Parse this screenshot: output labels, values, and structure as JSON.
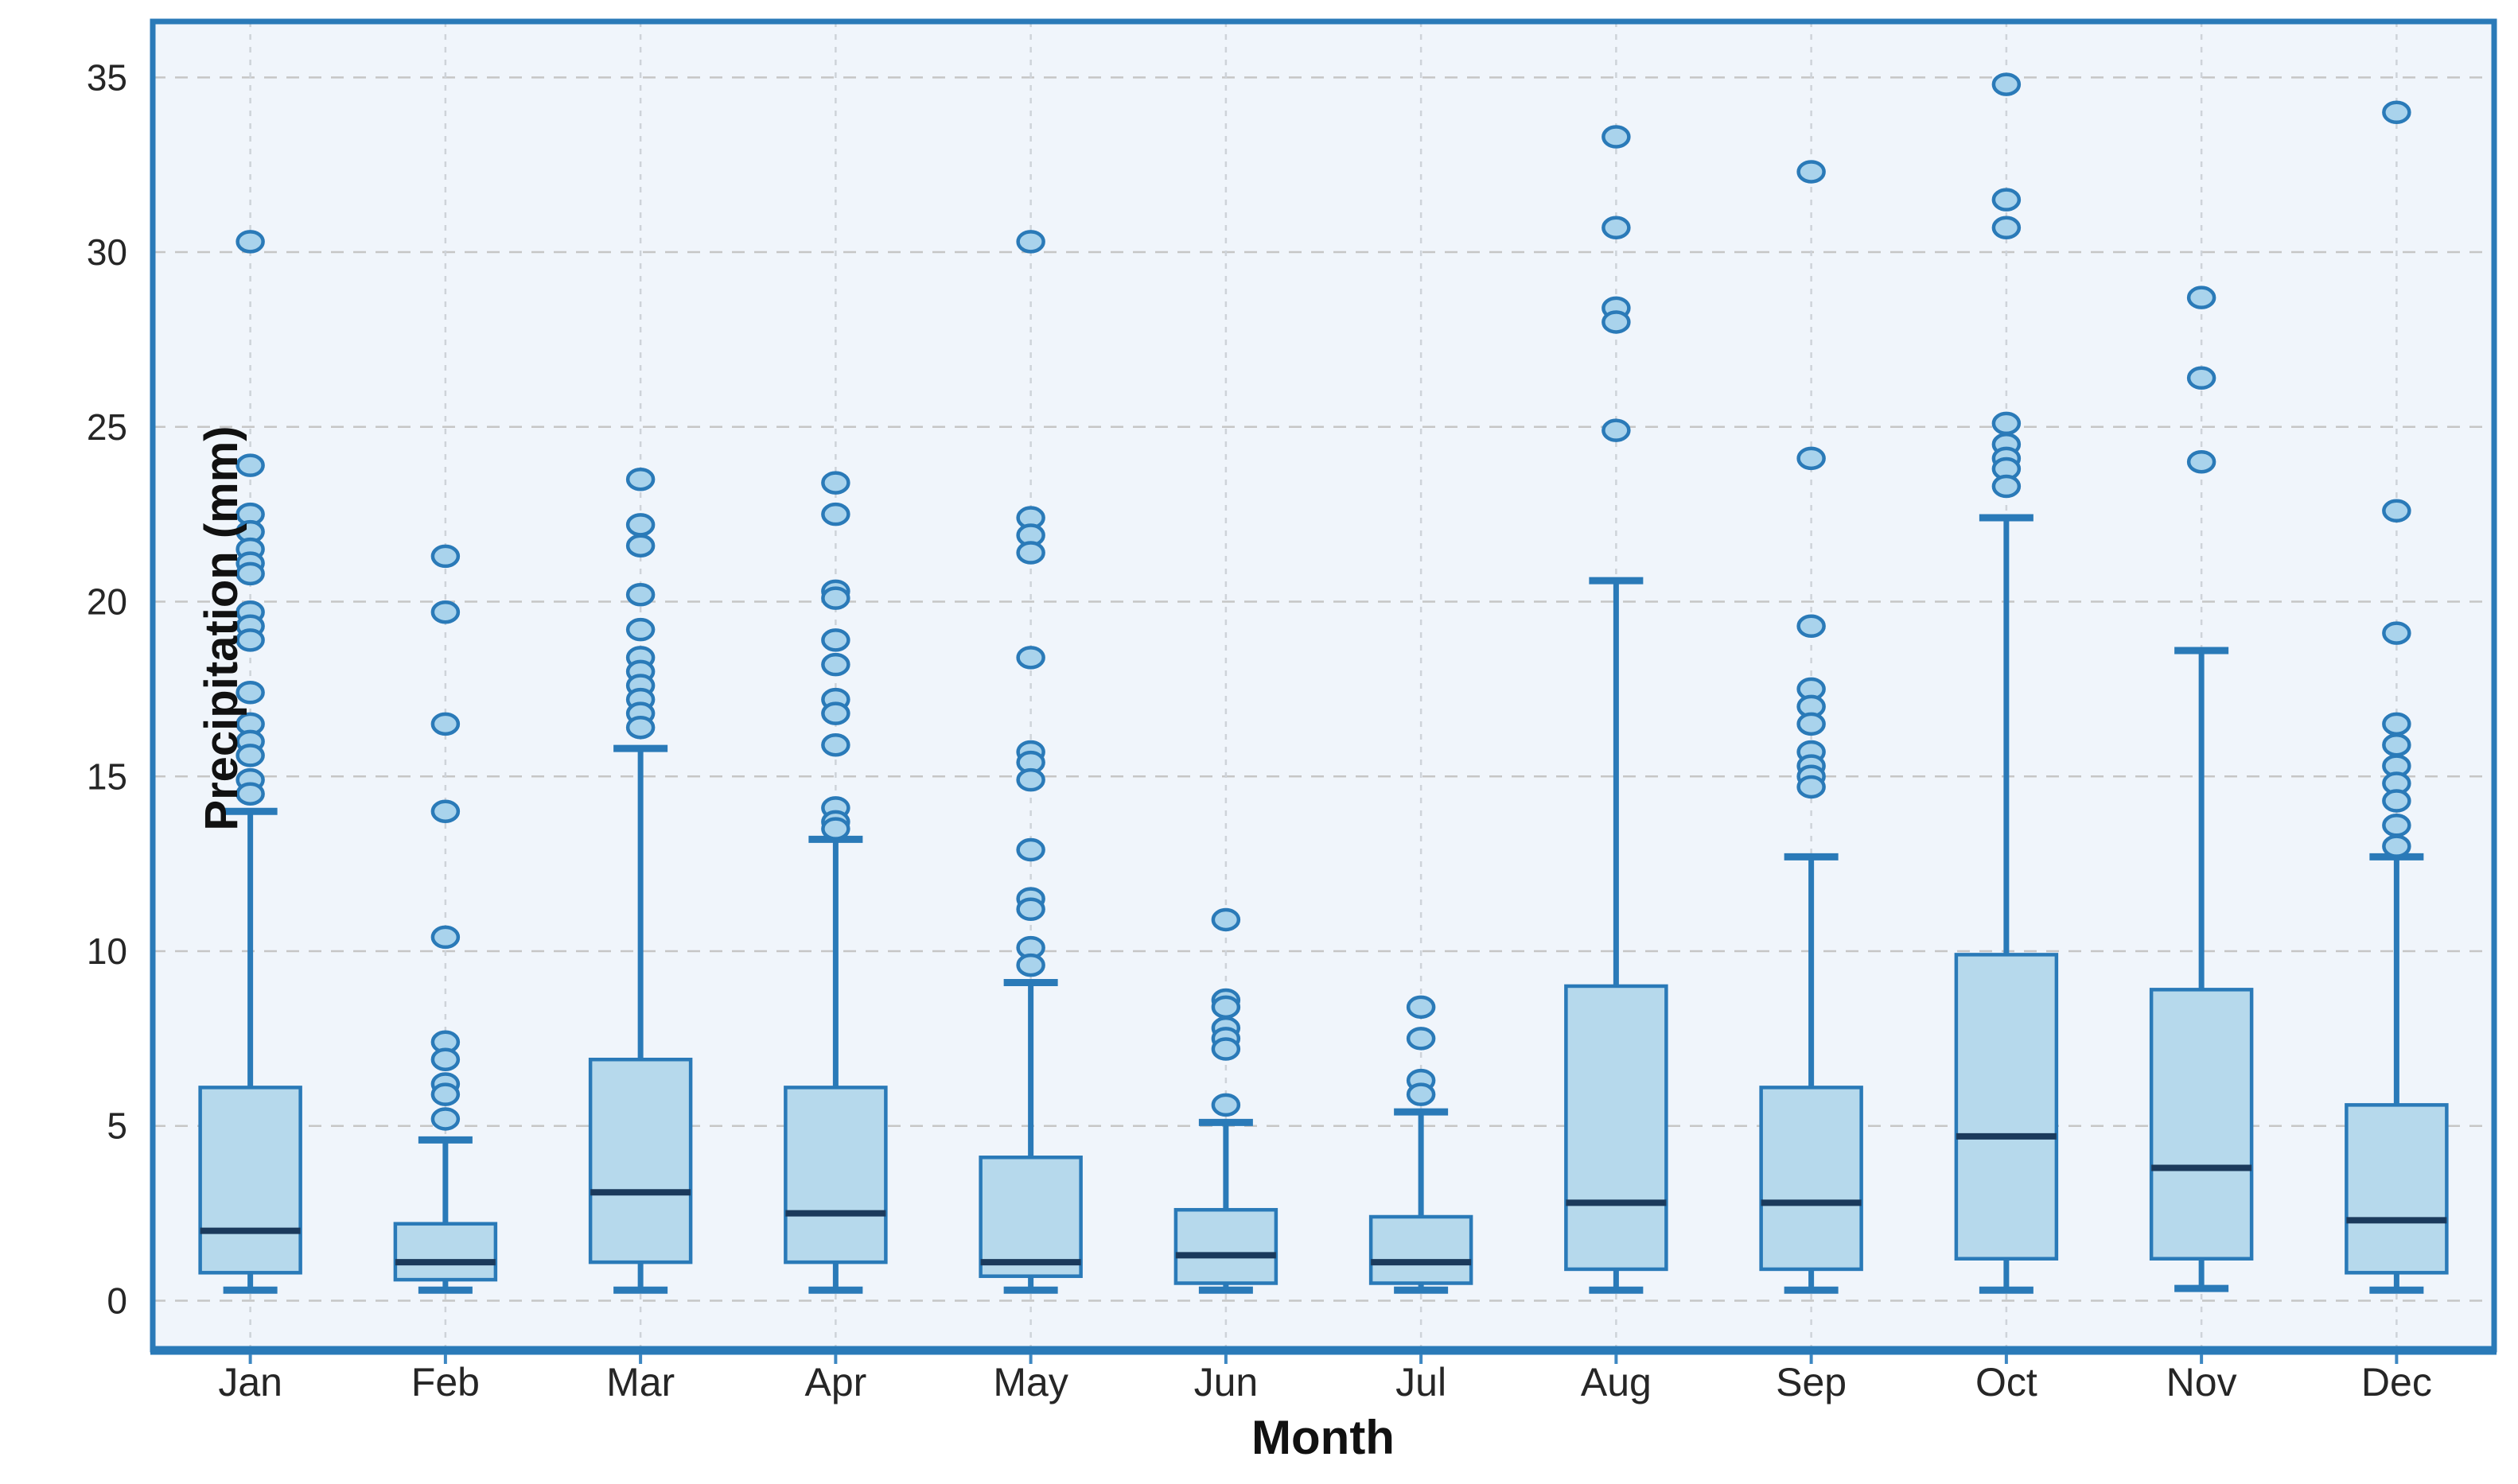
{
  "figure": {
    "kind": "box-plot-figure",
    "background": "#ffffff"
  },
  "colors": {
    "box_fill": "#b6d9ec",
    "box_edge": "#2a7ab8",
    "median_line": "#1b3a5c",
    "whisker": "#2a7ab8",
    "cap": "#2a7ab8",
    "outlier_fill": "#a9d3ec",
    "outlier_edge": "#2a7ab8",
    "plot_background": "#f0f5fb",
    "grid_horizontal": "#c6c6c6",
    "grid_vertical": "#ced3d9",
    "plot_border": "#2a7ab8",
    "tick_label_text": "#262626",
    "axis_title_text": "#111111"
  },
  "chart_data": {
    "type": "boxplot",
    "title": "",
    "xlabel": "Month",
    "ylabel": "Precipitation (mm)",
    "categories": [
      "Jan",
      "Feb",
      "Mar",
      "Apr",
      "May",
      "Jun",
      "Jul",
      "Aug",
      "Sep",
      "Oct",
      "Nov",
      "Dec"
    ],
    "y_ticks": [
      0,
      5,
      10,
      15,
      20,
      25,
      30,
      35
    ],
    "ylim": [
      -1.4,
      36.6
    ],
    "grid": true,
    "legend": "none",
    "series": [
      {
        "name": "Jan",
        "whisker_low": 0.3,
        "q1": 0.8,
        "median": 2.0,
        "q3": 6.1,
        "whisker_high": 14.0,
        "outliers": [
          30.3,
          23.9,
          22.5,
          22.0,
          21.5,
          21.1,
          20.8,
          19.7,
          19.3,
          18.9,
          17.4,
          16.5,
          16.0,
          15.6,
          14.9,
          14.5
        ]
      },
      {
        "name": "Feb",
        "whisker_low": 0.3,
        "q1": 0.6,
        "median": 1.1,
        "q3": 2.2,
        "whisker_high": 4.6,
        "outliers": [
          21.3,
          19.7,
          16.5,
          14.0,
          10.4,
          7.4,
          6.9,
          6.2,
          5.9,
          5.2
        ]
      },
      {
        "name": "Mar",
        "whisker_low": 0.3,
        "q1": 1.1,
        "median": 3.1,
        "q3": 6.9,
        "whisker_high": 15.8,
        "outliers": [
          23.5,
          22.2,
          21.6,
          20.2,
          19.2,
          18.4,
          18.0,
          17.6,
          17.2,
          16.8,
          16.4
        ]
      },
      {
        "name": "Apr",
        "whisker_low": 0.3,
        "q1": 1.1,
        "median": 2.5,
        "q3": 6.1,
        "whisker_high": 13.2,
        "outliers": [
          23.4,
          22.5,
          20.3,
          20.1,
          18.9,
          18.2,
          17.2,
          16.8,
          15.9,
          14.1,
          13.7,
          13.5
        ]
      },
      {
        "name": "May",
        "whisker_low": 0.3,
        "q1": 0.7,
        "median": 1.1,
        "q3": 4.1,
        "whisker_high": 9.1,
        "outliers": [
          30.3,
          22.4,
          21.9,
          21.4,
          18.4,
          15.7,
          15.4,
          14.9,
          12.9,
          11.5,
          11.2,
          10.1,
          9.6
        ]
      },
      {
        "name": "Jun",
        "whisker_low": 0.3,
        "q1": 0.5,
        "median": 1.3,
        "q3": 2.6,
        "whisker_high": 5.1,
        "outliers": [
          10.9,
          8.6,
          8.4,
          7.8,
          7.5,
          7.2,
          5.6
        ]
      },
      {
        "name": "Jul",
        "whisker_low": 0.3,
        "q1": 0.5,
        "median": 1.1,
        "q3": 2.4,
        "whisker_high": 5.4,
        "outliers": [
          8.4,
          7.5,
          6.3,
          5.9
        ]
      },
      {
        "name": "Aug",
        "whisker_low": 0.3,
        "q1": 0.9,
        "median": 2.8,
        "q3": 9.0,
        "whisker_high": 20.6,
        "outliers": [
          33.3,
          30.7,
          28.4,
          28.0,
          24.9
        ]
      },
      {
        "name": "Sep",
        "whisker_low": 0.3,
        "q1": 0.9,
        "median": 2.8,
        "q3": 6.1,
        "whisker_high": 12.7,
        "outliers": [
          32.3,
          24.1,
          19.3,
          17.5,
          17.0,
          16.5,
          15.7,
          15.3,
          15.0,
          14.7
        ]
      },
      {
        "name": "Oct",
        "whisker_low": 0.3,
        "q1": 1.2,
        "median": 4.7,
        "q3": 9.9,
        "whisker_high": 22.4,
        "outliers": [
          34.8,
          31.5,
          30.7,
          25.1,
          24.5,
          24.1,
          23.8,
          23.3
        ]
      },
      {
        "name": "Nov",
        "whisker_low": 0.35,
        "q1": 1.2,
        "median": 3.8,
        "q3": 8.9,
        "whisker_high": 18.6,
        "outliers": [
          28.7,
          26.4,
          24.0
        ]
      },
      {
        "name": "Dec",
        "whisker_low": 0.3,
        "q1": 0.8,
        "median": 2.3,
        "q3": 5.6,
        "whisker_high": 12.7,
        "outliers": [
          34.0,
          22.6,
          19.1,
          16.5,
          15.9,
          15.3,
          14.8,
          14.3,
          13.6,
          13.0
        ]
      }
    ]
  }
}
